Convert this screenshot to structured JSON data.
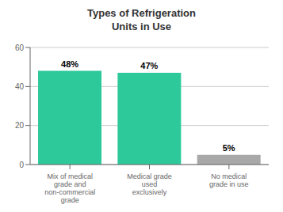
{
  "chart_data": {
    "type": "bar",
    "title": "Types of Refrigeration\nUnits in Use",
    "categories": [
      "Mix of medical\ngrade and\nnon-commercial\ngrade",
      "Medical grade\nused\nexclusively",
      "No medical\ngrade in use"
    ],
    "values": [
      48,
      47,
      5
    ],
    "value_labels": [
      "48%",
      "47%",
      "5%"
    ],
    "data_labels": true,
    "colors": [
      "#2ec99a",
      "#2ec99a",
      "#a8a8a8"
    ],
    "ylim": [
      0,
      60
    ],
    "yticks": [
      0,
      20,
      40,
      60
    ],
    "grid": true
  }
}
